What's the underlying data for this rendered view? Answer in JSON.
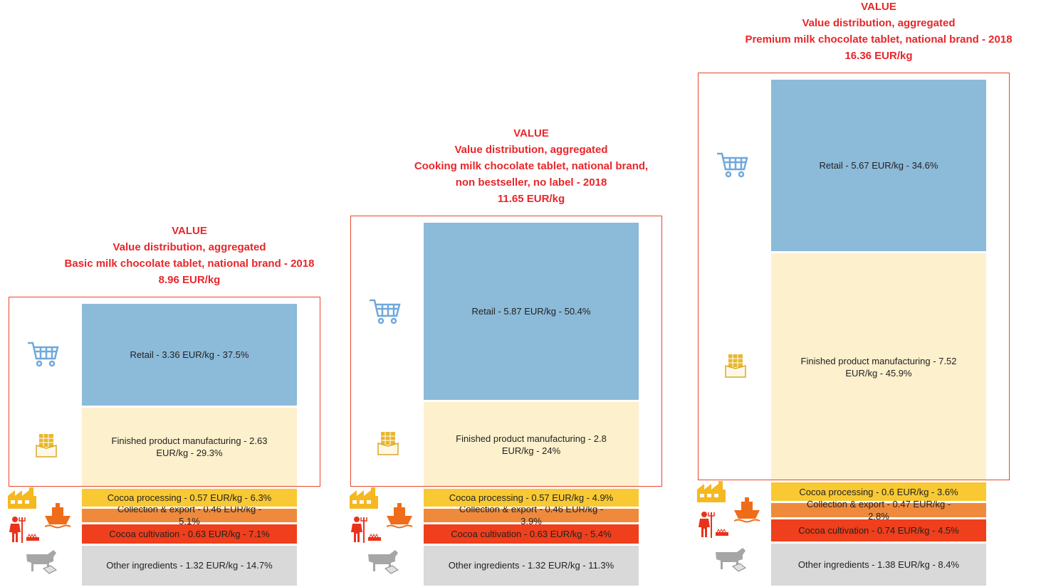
{
  "chart_data": [
    {
      "type": "stacked-bar",
      "title_lines": [
        "VALUE",
        "Value distribution, aggregated",
        "Basic milk chocolate tablet, national brand  - 2018",
        "8.96 EUR/kg"
      ],
      "series": [
        {
          "color": "#8cbad9",
          "values": [
            3.36
          ],
          "value_labels": [
            "Retail - 3.36 EUR/kg - 37.5%"
          ]
        },
        {
          "color": "#fdf0cc",
          "values": [
            2.63
          ],
          "value_labels": [
            "Finished product manufacturing - 2.63 EUR/kg - 29.3%"
          ]
        },
        {
          "color": "#f9c933",
          "values": [
            0.57
          ],
          "value_labels": [
            "Cocoa processing - 0.57 EUR/kg - 6.3%"
          ]
        },
        {
          "color": "#ef8a3c",
          "values": [
            0.46
          ],
          "value_labels": [
            "Collection & export - 0.46 EUR/kg - 5.1%"
          ]
        },
        {
          "color": "#ef3f1c",
          "values": [
            0.63
          ],
          "value_labels": [
            "Cocoa cultivation - 0.63 EUR/kg - 7.1%"
          ]
        },
        {
          "color": "#d9d9d9",
          "values": [
            1.32
          ],
          "value_labels": [
            "Other ingredients - 1.32 EUR/kg - 14.7%"
          ]
        }
      ]
    },
    {
      "type": "stacked-bar",
      "title_lines": [
        "VALUE",
        "Value distribution, aggregated",
        "Cooking milk chocolate tablet, national brand,",
        "non bestseller, no label  - 2018",
        "11.65 EUR/kg"
      ],
      "series": [
        {
          "color": "#8cbad9",
          "values": [
            5.87
          ],
          "value_labels": [
            "Retail - 5.87 EUR/kg - 50.4%"
          ]
        },
        {
          "color": "#fdf0cc",
          "values": [
            2.8
          ],
          "value_labels": [
            "Finished product manufacturing - 2.8 EUR/kg - 24%"
          ]
        },
        {
          "color": "#f9c933",
          "values": [
            0.57
          ],
          "value_labels": [
            "Cocoa processing - 0.57 EUR/kg - 4.9%"
          ]
        },
        {
          "color": "#ef8a3c",
          "values": [
            0.46
          ],
          "value_labels": [
            "Collection & export - 0.46 EUR/kg - 3.9%"
          ]
        },
        {
          "color": "#ef3f1c",
          "values": [
            0.63
          ],
          "value_labels": [
            "Cocoa cultivation - 0.63 EUR/kg - 5.4%"
          ]
        },
        {
          "color": "#d9d9d9",
          "values": [
            1.32
          ],
          "value_labels": [
            "Other ingredients - 1.32 EUR/kg - 11.3%"
          ]
        }
      ]
    },
    {
      "type": "stacked-bar",
      "title_lines": [
        "VALUE",
        "Value distribution, aggregated",
        "Premium milk chocolate tablet, national brand  - 2018",
        "16.36 EUR/kg"
      ],
      "series": [
        {
          "color": "#8cbad9",
          "values": [
            5.67
          ],
          "value_labels": [
            "Retail - 5.67 EUR/kg - 34.6%"
          ]
        },
        {
          "color": "#fdf0cc",
          "values": [
            7.52
          ],
          "value_labels": [
            "Finished product manufacturing - 7.52 EUR/kg - 45.9%"
          ]
        },
        {
          "color": "#f9c933",
          "values": [
            0.6
          ],
          "value_labels": [
            "Cocoa processing - 0.6 EUR/kg - 3.6%"
          ]
        },
        {
          "color": "#ef8a3c",
          "values": [
            0.47
          ],
          "value_labels": [
            "Collection & export - 0.47 EUR/kg - 2.8%"
          ]
        },
        {
          "color": "#ef3f1c",
          "values": [
            0.74
          ],
          "value_labels": [
            "Cocoa cultivation - 0.74 EUR/kg - 4.5%"
          ]
        },
        {
          "color": "#d9d9d9",
          "values": [
            1.38
          ],
          "value_labels": [
            "Other ingredients - 1.38 EUR/kg - 8.4%"
          ]
        }
      ]
    }
  ]
}
